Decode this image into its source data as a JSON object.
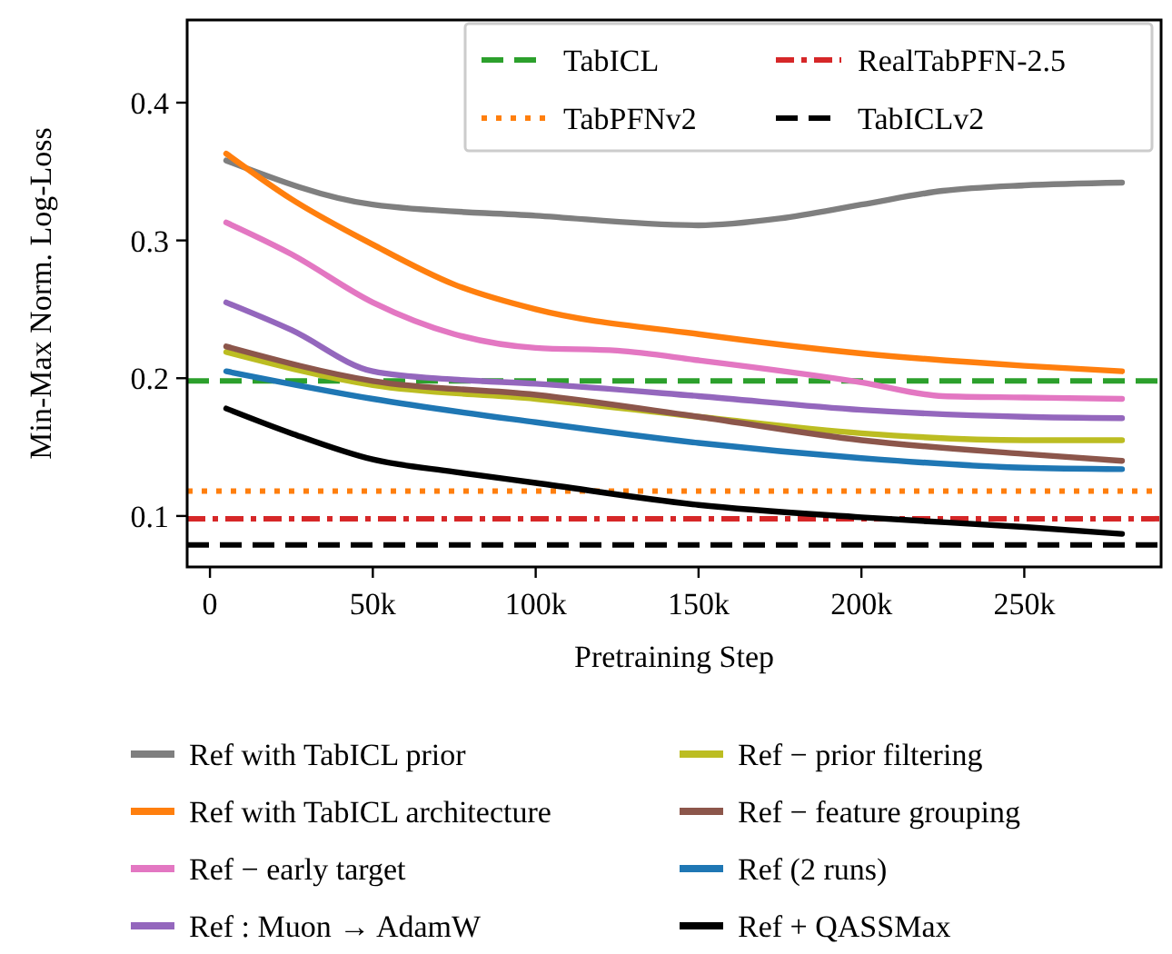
{
  "chart_data": {
    "type": "line",
    "xlabel": "Pretraining Step",
    "ylabel": "Min-Max Norm. Log-Loss",
    "xlim": [
      -7000,
      292000
    ],
    "ylim": [
      0.063,
      0.46
    ],
    "xticks": [
      0,
      {
        "value": 50000,
        "label": "50k"
      },
      {
        "value": 100000,
        "label": "100k"
      },
      {
        "value": 150000,
        "label": "150k"
      },
      {
        "value": 200000,
        "label": "200k"
      },
      {
        "value": 250000,
        "label": "250k"
      }
    ],
    "yticks": [
      0.1,
      0.2,
      0.3,
      0.4
    ],
    "grid": false,
    "legend": "bottom",
    "marker": "none",
    "line_style": "solid",
    "series": [
      {
        "name": "Ref with TabICL prior",
        "color": "#7f7f7f",
        "x": [
          5000,
          50000,
          100000,
          150000,
          175000,
          200000,
          225000,
          250000,
          280000
        ],
        "values": [
          0.358,
          0.326,
          0.318,
          0.311,
          0.316,
          0.326,
          0.336,
          0.34,
          0.342
        ]
      },
      {
        "name": "Ref with TabICL architecture",
        "color": "#ff7f0e",
        "x": [
          5000,
          25000,
          50000,
          75000,
          100000,
          150000,
          200000,
          250000,
          280000
        ],
        "values": [
          0.363,
          0.33,
          0.297,
          0.268,
          0.25,
          0.232,
          0.218,
          0.209,
          0.205
        ]
      },
      {
        "name": "Ref − early target",
        "color": "#e377c2",
        "x": [
          5000,
          25000,
          50000,
          75000,
          100000,
          125000,
          150000,
          200000,
          225000,
          250000,
          280000
        ],
        "values": [
          0.313,
          0.29,
          0.255,
          0.232,
          0.222,
          0.22,
          0.213,
          0.197,
          0.187,
          0.186,
          0.185
        ]
      },
      {
        "name": "Ref : Muon → AdamW",
        "color": "#9467bd",
        "x": [
          5000,
          25000,
          50000,
          75000,
          100000,
          150000,
          200000,
          250000,
          280000
        ],
        "values": [
          0.255,
          0.235,
          0.205,
          0.199,
          0.196,
          0.187,
          0.177,
          0.172,
          0.171
        ]
      },
      {
        "name": "Ref − prior filtering",
        "color": "#bcbd22",
        "x": [
          5000,
          50000,
          100000,
          150000,
          200000,
          250000,
          280000
        ],
        "values": [
          0.219,
          0.195,
          0.185,
          0.172,
          0.16,
          0.155,
          0.155
        ]
      },
      {
        "name": "Ref − feature grouping",
        "color": "#8c564b",
        "x": [
          5000,
          50000,
          100000,
          150000,
          200000,
          250000,
          280000
        ],
        "values": [
          0.223,
          0.198,
          0.188,
          0.172,
          0.155,
          0.145,
          0.14
        ]
      },
      {
        "name": "Ref (2 runs)",
        "color": "#1f77b4",
        "x": [
          5000,
          50000,
          100000,
          150000,
          200000,
          250000,
          280000
        ],
        "values": [
          0.205,
          0.185,
          0.168,
          0.153,
          0.142,
          0.135,
          0.134
        ]
      },
      {
        "name": "Ref + QASSMax",
        "color": "#000000",
        "x": [
          5000,
          25000,
          50000,
          75000,
          100000,
          150000,
          200000,
          250000,
          280000
        ],
        "values": [
          0.178,
          0.16,
          0.141,
          0.132,
          0.124,
          0.108,
          0.099,
          0.092,
          0.087
        ]
      }
    ],
    "ref_lines": [
      {
        "axis": "y",
        "value": 0.198,
        "label": "TabICL",
        "color": "#2ca02c",
        "line_style": "dashed"
      },
      {
        "axis": "y",
        "value": 0.118,
        "label": "TabPFNv2",
        "color": "#ff7f0e",
        "line_style": "dotted"
      },
      {
        "axis": "y",
        "value": 0.098,
        "label": "RealTabPFN-2.5",
        "color": "#d62728",
        "line_style": "dashdot"
      },
      {
        "axis": "y",
        "value": 0.079,
        "label": "TabICLv2",
        "color": "#000000",
        "line_style": "dashed"
      }
    ]
  }
}
